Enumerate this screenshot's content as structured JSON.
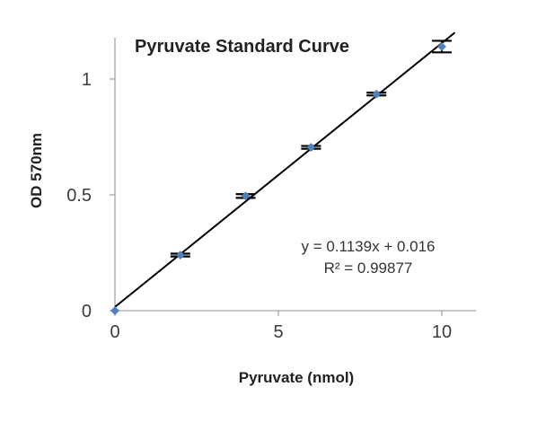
{
  "chart_data": {
    "type": "scatter",
    "title": "Pyruvate Standard Curve",
    "xlabel": "Pyruvate (nmol)",
    "ylabel": "OD 570nm",
    "xlim": [
      0,
      11
    ],
    "ylim": [
      0,
      1.2
    ],
    "x_ticks": [
      0,
      5,
      10
    ],
    "x_tick_labels": [
      "0",
      "5",
      "10"
    ],
    "y_ticks": [
      0,
      0.5,
      1
    ],
    "y_tick_labels": [
      "0",
      "0.5",
      "1"
    ],
    "grid": false,
    "series": [
      {
        "color": "#4f81bd",
        "x": [
          0,
          2,
          4,
          6,
          8,
          10
        ],
        "y": [
          0.0,
          0.24,
          0.495,
          0.705,
          0.935,
          1.14
        ],
        "error": [
          0.0,
          0.006,
          0.008,
          0.006,
          0.006,
          0.025
        ]
      }
    ],
    "trendline": {
      "slope": 0.1139,
      "intercept": 0.016,
      "equation": "y = 0.1139x + 0.016",
      "r_squared": "R² = 0.99877",
      "color": "#000000"
    }
  }
}
